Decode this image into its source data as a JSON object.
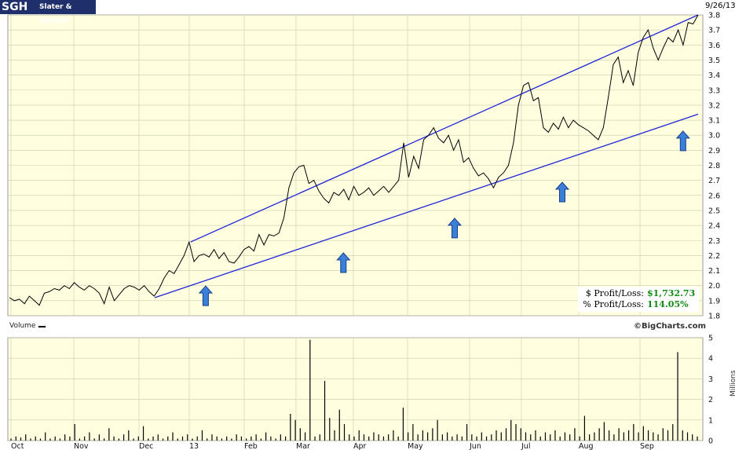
{
  "header": {
    "ticker": "SGH",
    "company": "Slater & Gordon",
    "date": "9/26/13"
  },
  "profit_loss": {
    "dollar_label": "$ Profit/Loss:",
    "dollar_value": "$1,732.73",
    "percent_label": "% Profit/Loss:",
    "percent_value": "114.05%"
  },
  "volume_panel": {
    "label": "Volume",
    "credit": "©BigCharts.com",
    "unit_label": "Millions"
  },
  "colors": {
    "plot_bg": "#ffffe0",
    "grid": "#c9c9b0",
    "price_line": "#000000",
    "trend_lines": "#1e26d6",
    "arrows": "#3a7fd8"
  },
  "chart_data": [
    {
      "type": "line",
      "series": [
        {
          "values": [
            1.92,
            1.9,
            1.91,
            1.88,
            1.93,
            1.9,
            1.87,
            1.95,
            1.96,
            1.98,
            1.97,
            2.0,
            1.98,
            2.02,
            1.99,
            1.97,
            2.0,
            1.98,
            1.95,
            1.88,
            1.99,
            1.9,
            1.94,
            1.98,
            2.0,
            1.99,
            1.97,
            2.0,
            1.96,
            1.93,
            1.98,
            2.05,
            2.1,
            2.08,
            2.14,
            2.2,
            2.29,
            2.16,
            2.2,
            2.21,
            2.19,
            2.24,
            2.18,
            2.22,
            2.16,
            2.15,
            2.19,
            2.24,
            2.26,
            2.23,
            2.34,
            2.27,
            2.34,
            2.33,
            2.35,
            2.45,
            2.65,
            2.75,
            2.79,
            2.8,
            2.68,
            2.7,
            2.63,
            2.58,
            2.55,
            2.62,
            2.6,
            2.64,
            2.57,
            2.66,
            2.6,
            2.62,
            2.65,
            2.6,
            2.63,
            2.66,
            2.62,
            2.66,
            2.7,
            2.95,
            2.72,
            2.86,
            2.78,
            2.97,
            3.0,
            3.05,
            2.98,
            2.95,
            3.0,
            2.9,
            2.97,
            2.82,
            2.85,
            2.78,
            2.73,
            2.75,
            2.71,
            2.65,
            2.72,
            2.75,
            2.8,
            2.95,
            3.2,
            3.33,
            3.35,
            3.23,
            3.25,
            3.05,
            3.02,
            3.08,
            3.04,
            3.12,
            3.05,
            3.1,
            3.07,
            3.05,
            3.03,
            3.0,
            2.97,
            3.05,
            3.25,
            3.47,
            3.52,
            3.35,
            3.43,
            3.33,
            3.55,
            3.65,
            3.7,
            3.58,
            3.5,
            3.58,
            3.65,
            3.62,
            3.7,
            3.6,
            3.75,
            3.74,
            3.8
          ]
        }
      ],
      "x_tick_labels": [
        "Oct",
        "Nov",
        "Dec",
        "13",
        "Feb",
        "Mar",
        "Apr",
        "May",
        "Jun",
        "Jul",
        "Aug",
        "Sep"
      ],
      "y_tick_labels": [
        "1.8",
        "1.9",
        "2.0",
        "2.1",
        "2.2",
        "2.3",
        "2.4",
        "2.5",
        "2.6",
        "2.7",
        "2.8",
        "2.9",
        "3.0",
        "3.1",
        "3.2",
        "3.3",
        "3.4",
        "3.5",
        "3.6",
        "3.7",
        "3.8"
      ],
      "ylim": [
        1.8,
        3.8
      ],
      "trend_lines": [
        {
          "from": {
            "date": "2012-12-31",
            "price": 2.29
          },
          "to": {
            "date": "2013-09-26",
            "price": 3.8
          }
        },
        {
          "from": {
            "date": "2012-12-12",
            "price": 1.92
          },
          "to": {
            "date": "2013-09-26",
            "price": 3.14
          }
        }
      ],
      "annotations": [
        {
          "marker": "up-arrow",
          "date": "2013-01-08",
          "price": 1.93
        },
        {
          "marker": "up-arrow",
          "date": "2013-03-22",
          "price": 2.15
        },
        {
          "marker": "up-arrow",
          "date": "2013-05-20",
          "price": 2.38
        },
        {
          "marker": "up-arrow",
          "date": "2013-07-16",
          "price": 2.62
        },
        {
          "marker": "up-arrow",
          "date": "2013-09-18",
          "price": 2.96
        }
      ],
      "grid": true
    },
    {
      "type": "bar",
      "series": [
        {
          "name": "Volume",
          "values": [
            0.1,
            0.2,
            0.15,
            0.3,
            0.1,
            0.2,
            0.1,
            0.4,
            0.1,
            0.2,
            0.1,
            0.3,
            0.2,
            0.8,
            0.1,
            0.2,
            0.4,
            0.1,
            0.3,
            0.1,
            0.6,
            0.2,
            0.1,
            0.3,
            0.5,
            0.1,
            0.2,
            0.7,
            0.1,
            0.2,
            0.3,
            0.1,
            0.2,
            0.4,
            0.1,
            0.2,
            0.3,
            0.1,
            0.2,
            0.5,
            0.1,
            0.3,
            0.2,
            0.1,
            0.2,
            0.1,
            0.3,
            0.2,
            0.1,
            0.2,
            0.3,
            0.1,
            0.4,
            0.2,
            0.1,
            0.3,
            0.2,
            1.3,
            1.0,
            0.6,
            0.4,
            4.9,
            0.2,
            0.3,
            2.9,
            1.1,
            0.5,
            1.5,
            0.8,
            0.3,
            0.2,
            0.5,
            0.3,
            0.2,
            0.4,
            0.3,
            0.2,
            0.3,
            0.5,
            0.2,
            1.6,
            0.4,
            0.8,
            0.3,
            0.5,
            0.4,
            0.6,
            1.0,
            0.3,
            0.4,
            0.2,
            0.3,
            0.2,
            0.8,
            0.3,
            0.2,
            0.4,
            0.2,
            0.3,
            0.5,
            0.4,
            0.6,
            1.0,
            0.8,
            0.6,
            0.4,
            0.3,
            0.5,
            0.2,
            0.4,
            0.3,
            0.5,
            0.2,
            0.4,
            0.3,
            0.6,
            0.2,
            1.2,
            0.3,
            0.4,
            0.6,
            0.9,
            0.5,
            0.3,
            0.6,
            0.4,
            0.5,
            0.8,
            0.4,
            0.7,
            0.5,
            0.4,
            0.3,
            0.6,
            0.5,
            0.8,
            4.3,
            0.5,
            0.4,
            0.3,
            0.2
          ]
        }
      ],
      "x_tick_labels": [
        "Oct",
        "Nov",
        "Dec",
        "13",
        "Feb",
        "Mar",
        "Apr",
        "May",
        "Jun",
        "Jul",
        "Aug",
        "Sep"
      ],
      "y_tick_labels": [
        "0",
        "1",
        "2",
        "3",
        "4",
        "5"
      ],
      "ylim": [
        0,
        5
      ],
      "ylabel": "Millions",
      "grid": true
    }
  ]
}
